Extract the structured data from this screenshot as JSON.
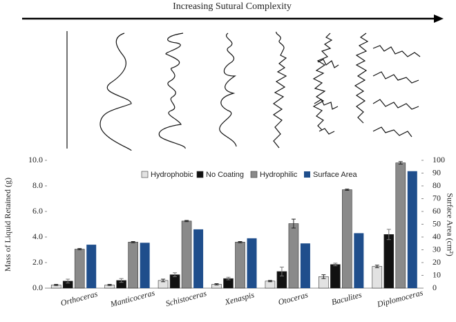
{
  "header": {
    "title": "Increasing Sutural Complexity"
  },
  "chart_data": {
    "type": "bar",
    "categories": [
      "Orthoceras",
      "Manticoceras",
      "Schistoceras",
      "Xenaspis",
      "Otoceras",
      "Baculites",
      "Diplomoceras"
    ],
    "series": [
      {
        "name": "Hydrophobic",
        "color": "#e2e2e2",
        "values": [
          0.25,
          0.25,
          0.6,
          0.3,
          0.55,
          0.9,
          1.7
        ],
        "errors": [
          0.05,
          0.05,
          0.1,
          0.05,
          0.05,
          0.15,
          0.1
        ]
      },
      {
        "name": "No Coating",
        "color": "#111111",
        "values": [
          0.55,
          0.6,
          1.05,
          0.75,
          1.3,
          1.85,
          4.2
        ],
        "errors": [
          0.15,
          0.15,
          0.15,
          0.1,
          0.35,
          0.1,
          0.4
        ]
      },
      {
        "name": "Hydrophilic",
        "color": "#8a8a8a",
        "values": [
          3.05,
          3.6,
          5.25,
          3.6,
          5.05,
          7.7,
          9.8
        ],
        "errors": [
          0.05,
          0.05,
          0.05,
          0.05,
          0.35,
          0.05,
          0.1
        ]
      },
      {
        "name": "Surface Area",
        "color": "#1f4e8c",
        "axis": "y2",
        "values": [
          34,
          35.5,
          46,
          39,
          35,
          43,
          91.5
        ]
      }
    ],
    "ylabel": "Mass of Liquid Retained (g)",
    "y2label": "Surface Area (cm²)",
    "ylim": [
      0,
      10
    ],
    "yticks": [
      {
        "value": 0,
        "label": "0.0"
      },
      {
        "value": 2,
        "label": "2.0"
      },
      {
        "value": 4,
        "label": "4.0"
      },
      {
        "value": 6,
        "label": "6.0"
      },
      {
        "value": 8,
        "label": "8.0"
      },
      {
        "value": 10,
        "label": "10.0"
      }
    ],
    "y2lim": [
      0,
      100
    ],
    "y2ticks": [
      0,
      10,
      20,
      30,
      40,
      50,
      60,
      70,
      80,
      90,
      100
    ],
    "legend": "top"
  }
}
